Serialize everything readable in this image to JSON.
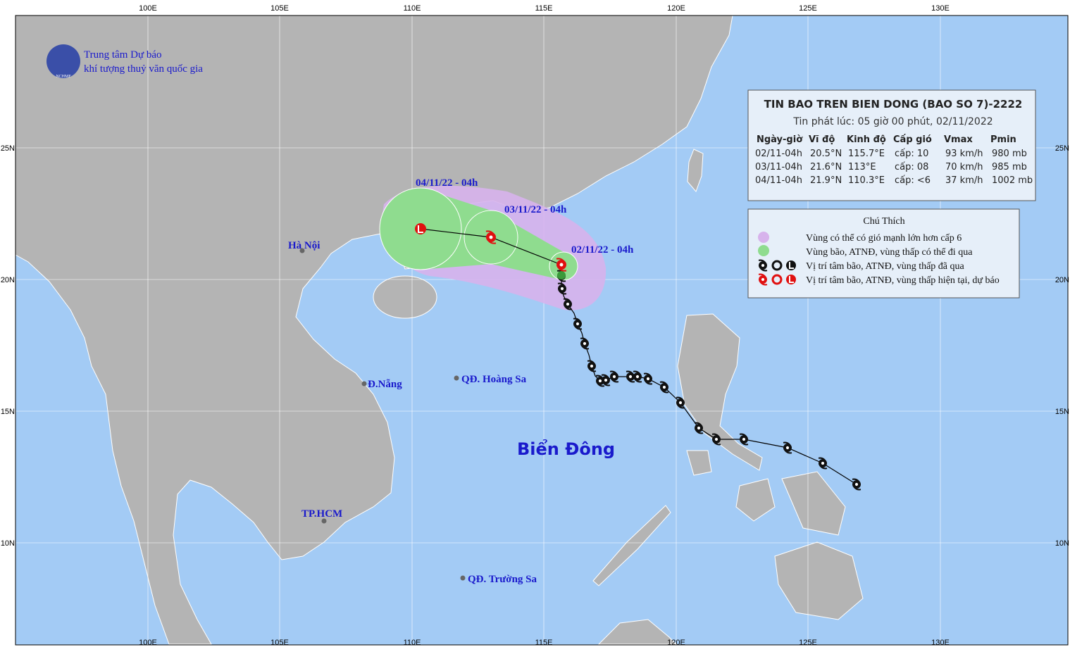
{
  "axes": {
    "lon_labels": [
      "100E",
      "105E",
      "110E",
      "115E",
      "120E",
      "125E",
      "130E"
    ],
    "lat_labels": [
      "25N",
      "20N",
      "15N",
      "10N"
    ]
  },
  "logo": {
    "line1": "Trung tâm Dự báo",
    "line2": "khí tượng thuỷ văn quốc gia",
    "badge": "NCHMF"
  },
  "bulletin": {
    "title": "TIN BAO TREN BIEN DONG (BAO SO 7)-2222",
    "issued": "Tin phát lúc: 05 giờ 00 phút, 02/11/2022",
    "table": {
      "headers": [
        "Ngày-giờ",
        "Vĩ độ",
        "Kinh độ",
        "Cấp gió",
        "Vmax",
        "Pmin"
      ],
      "rows": [
        [
          "02/11-04h",
          "20.5°N",
          "115.7°E",
          "cấp: 10",
          "93 km/h",
          "980 mb"
        ],
        [
          "03/11-04h",
          "21.6°N",
          "113°E",
          "cấp: 08",
          "70 km/h",
          "985 mb"
        ],
        [
          "04/11-04h",
          "21.9°N",
          "110.3°E",
          "cấp: <6",
          "37 km/h",
          "1002 mb"
        ]
      ]
    }
  },
  "legend": {
    "title": "Chú Thích",
    "items": [
      "Vùng có thể có gió mạnh lớn hơn cấp 6",
      "Vùng bão, ATNĐ, vùng thấp có thể đi qua",
      "Vị trí tâm bão, ATNĐ, vùng thấp đã qua",
      "Vị trí tâm bão, ATNĐ, vùng thấp hiện tại, dự báo"
    ]
  },
  "track_labels": [
    "04/11/22 - 04h",
    "03/11/22 - 04h",
    "02/11/22 - 04h"
  ],
  "places": [
    "Hà Nội",
    "Đ.Nẵng",
    "QĐ. Hoàng Sa",
    "TP.HCM",
    "QĐ. Trường Sa"
  ],
  "sea_label": "Biển Đông"
}
